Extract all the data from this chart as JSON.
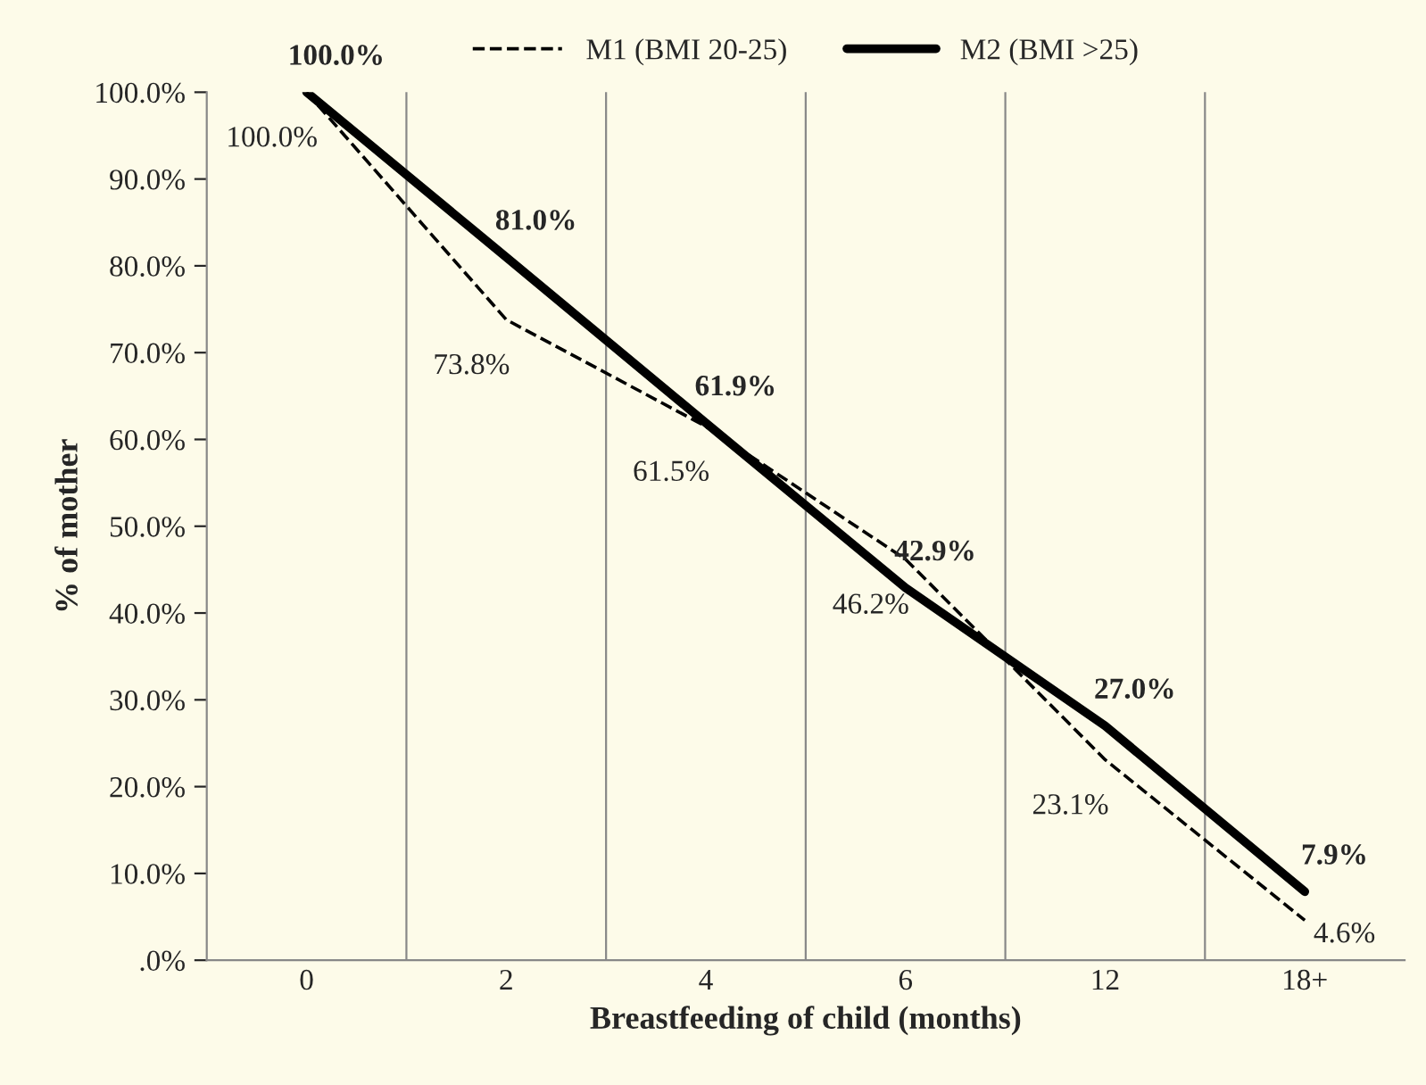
{
  "chart_data": {
    "type": "line",
    "xlabel": "Breastfeeding of child (months)",
    "ylabel": "% of mother",
    "categories": [
      "0",
      "2",
      "4",
      "6",
      "12",
      "18+"
    ],
    "series": [
      {
        "name": "M1 (BMI 20-25)",
        "color": "#000000",
        "line_style": "dashed",
        "values": [
          100.0,
          73.8,
          61.5,
          46.2,
          23.1,
          4.6
        ],
        "value_labels": [
          "100.0%",
          "73.8%",
          "61.5%",
          "46.2%",
          "23.1%",
          "4.6%"
        ]
      },
      {
        "name": "M2 (BMI >25)",
        "color": "#000000",
        "line_style": "solid",
        "values": [
          100.0,
          81.0,
          61.9,
          42.9,
          27.0,
          7.9
        ],
        "value_labels": [
          "100.0%",
          "81.0%",
          "61.9%",
          "42.9%",
          "27.0%",
          "7.9%"
        ]
      }
    ],
    "ylim": [
      0,
      100
    ],
    "yticks": [
      {
        "value": 0,
        "label": ".0%"
      },
      {
        "value": 10,
        "label": "10.0%"
      },
      {
        "value": 20,
        "label": "20.0%"
      },
      {
        "value": 30,
        "label": "30.0%"
      },
      {
        "value": 40,
        "label": "40.0%"
      },
      {
        "value": 50,
        "label": "50.0%"
      },
      {
        "value": 60,
        "label": "60.0%"
      },
      {
        "value": 70,
        "label": "70.0%"
      },
      {
        "value": 80,
        "label": "80.0%"
      },
      {
        "value": 90,
        "label": "90.0%"
      },
      {
        "value": 100,
        "label": "100.0%"
      }
    ],
    "grid": "x",
    "legend": "top",
    "marker": "none"
  }
}
